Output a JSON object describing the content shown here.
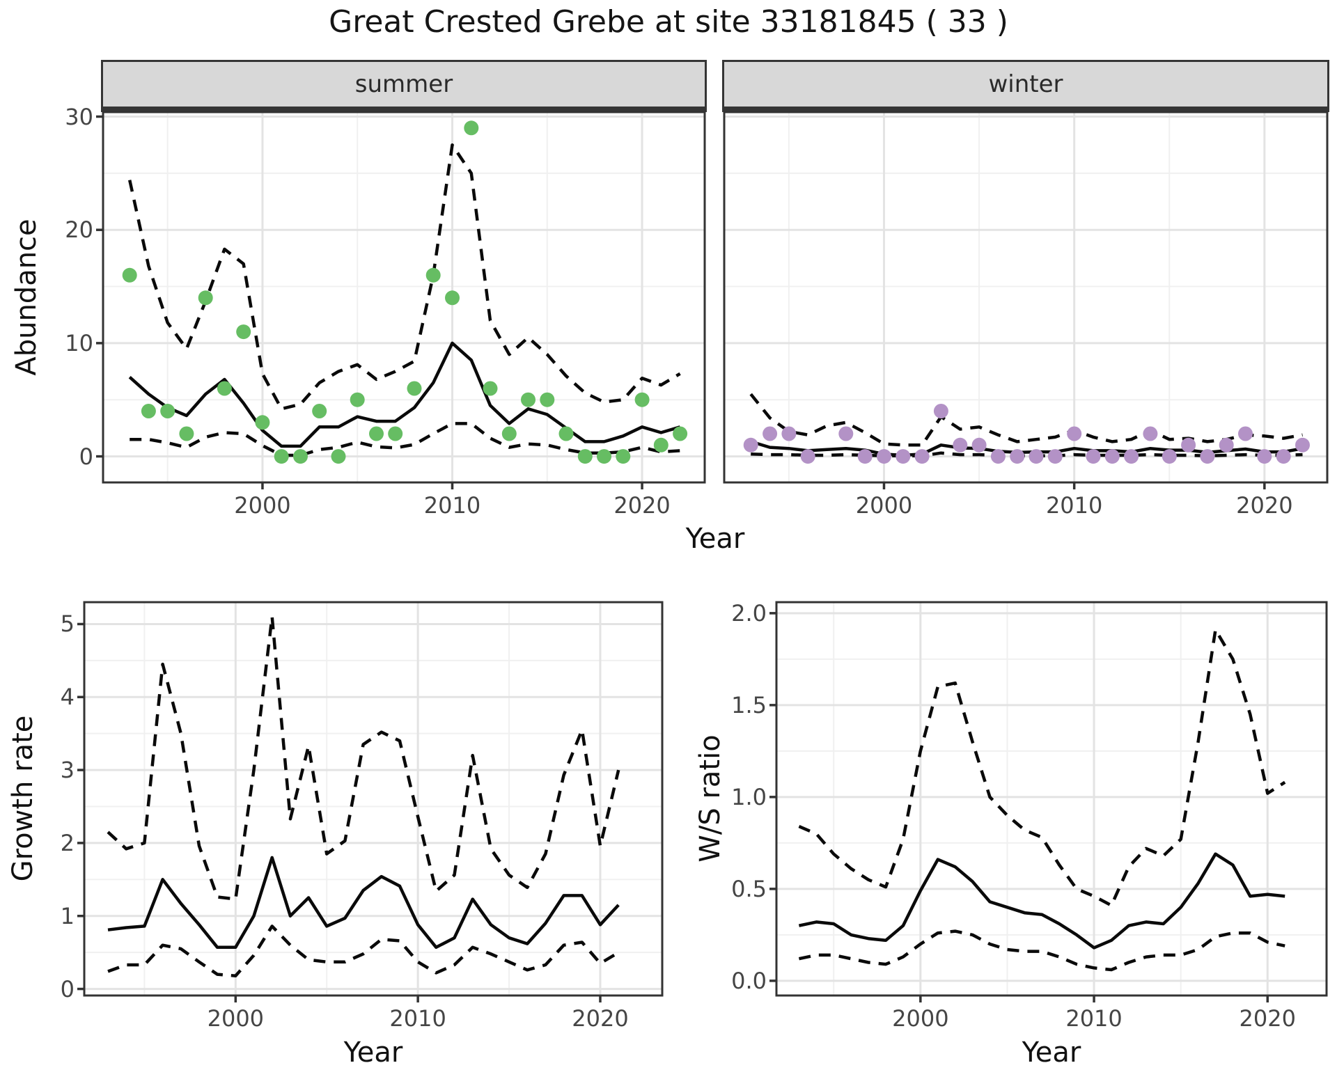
{
  "title": "Great Crested Grebe at site 33181845 ( 33 )",
  "facets": {
    "summer": "summer",
    "winter": "winter"
  },
  "axis_titles": {
    "abundance": "Abundance",
    "year_top": "Year",
    "growth_rate": "Growth rate",
    "ws_ratio": "W/S ratio",
    "year_bottom_left": "Year",
    "year_bottom_right": "Year"
  },
  "colors": {
    "summer_points": "#66bd63",
    "winter_points": "#b392c6",
    "line": "#0a0a0a",
    "strip_bg": "#d8d8d8",
    "strip_border": "#353535",
    "panel_border": "#333333",
    "grid_major": "#e3e3e3",
    "grid_minor": "#f0f0f0",
    "axis_text": "#454545",
    "tick_mark": "#333333"
  },
  "chart_data": [
    {
      "type": "line",
      "name": "abundance-summer",
      "title": "summer",
      "xlabel": "Year",
      "ylabel": "Abundance",
      "xlim": [
        1991.6,
        2023.3
      ],
      "ylim": [
        -2.3,
        30.4
      ],
      "xticks": [
        2000,
        2010,
        2020
      ],
      "xtick_labels": [
        "2000",
        "2010",
        "2020"
      ],
      "yticks": [
        0,
        10,
        20,
        30
      ],
      "ytick_labels": [
        "0",
        "10",
        "20",
        "30"
      ],
      "xminor": [
        1995,
        2005,
        2015
      ],
      "yminor": [
        5,
        15,
        25
      ],
      "x": [
        1993,
        1994,
        1995,
        1996,
        1997,
        1998,
        1999,
        2000,
        2001,
        2002,
        2003,
        2004,
        2005,
        2006,
        2007,
        2008,
        2009,
        2010,
        2011,
        2012,
        2013,
        2014,
        2015,
        2016,
        2017,
        2018,
        2019,
        2020,
        2021,
        2022
      ],
      "series": [
        {
          "name": "upper_ci",
          "style": "dashed",
          "values": [
            24.4,
            16.8,
            11.8,
            9.5,
            13.7,
            18.3,
            17.0,
            7.3,
            4.2,
            4.6,
            6.5,
            7.5,
            8.1,
            6.8,
            7.5,
            8.4,
            16.0,
            27.5,
            25.0,
            12.0,
            9.0,
            10.5,
            9.0,
            7.1,
            5.6,
            4.8,
            5.0,
            6.9,
            6.3,
            7.3
          ]
        },
        {
          "name": "lower_ci",
          "style": "dashed",
          "values": [
            1.5,
            1.5,
            1.2,
            0.8,
            1.7,
            2.1,
            2.0,
            0.95,
            0.1,
            0.1,
            0.6,
            0.8,
            1.25,
            0.85,
            0.75,
            1.05,
            2.0,
            2.9,
            2.9,
            1.6,
            0.8,
            1.1,
            1.0,
            0.6,
            0.3,
            0.3,
            0.4,
            0.8,
            0.4,
            0.5
          ]
        },
        {
          "name": "fit",
          "style": "solid",
          "values": [
            7.0,
            5.5,
            4.3,
            3.6,
            5.5,
            6.8,
            4.7,
            2.3,
            0.9,
            0.9,
            2.6,
            2.6,
            3.5,
            3.1,
            3.1,
            4.3,
            6.5,
            10.0,
            8.5,
            4.5,
            2.9,
            4.2,
            3.7,
            2.5,
            1.3,
            1.3,
            1.8,
            2.6,
            2.1,
            2.6
          ]
        },
        {
          "name": "observed",
          "style": "points",
          "color": "#66bd63",
          "values": [
            16,
            4,
            4,
            2,
            14,
            6,
            11,
            3,
            0,
            0,
            4,
            0,
            5,
            2,
            2,
            6,
            16,
            14,
            29,
            6,
            2,
            5,
            5,
            2,
            0,
            0,
            0,
            5,
            1,
            2
          ]
        }
      ]
    },
    {
      "type": "line",
      "name": "abundance-winter",
      "title": "winter",
      "xlabel": "Year",
      "ylabel": "Abundance",
      "xlim": [
        1991.6,
        2023.3
      ],
      "ylim": [
        -2.3,
        30.4
      ],
      "xticks": [
        2000,
        2010,
        2020
      ],
      "xtick_labels": [
        "2000",
        "2010",
        "2020"
      ],
      "yticks": [
        0,
        10,
        20,
        30
      ],
      "ytick_labels": [
        "0",
        "10",
        "20",
        "30"
      ],
      "xminor": [
        1995,
        2005,
        2015
      ],
      "yminor": [
        5,
        15,
        25
      ],
      "x": [
        1993,
        1994,
        1995,
        1996,
        1997,
        1998,
        1999,
        2000,
        2001,
        2002,
        2003,
        2004,
        2005,
        2006,
        2007,
        2008,
        2009,
        2010,
        2011,
        2012,
        2013,
        2014,
        2015,
        2016,
        2017,
        2018,
        2019,
        2020,
        2021,
        2022
      ],
      "series": [
        {
          "name": "upper_ci",
          "style": "dashed",
          "values": [
            5.5,
            3.4,
            2.2,
            1.9,
            2.7,
            3.0,
            2.1,
            1.1,
            1.0,
            1.0,
            3.5,
            2.4,
            2.6,
            1.9,
            1.3,
            1.5,
            1.7,
            2.3,
            1.7,
            1.3,
            1.5,
            2.3,
            1.5,
            1.6,
            1.3,
            1.5,
            1.9,
            1.8,
            1.6,
            1.9
          ]
        },
        {
          "name": "lower_ci",
          "style": "dashed",
          "values": [
            0.2,
            0.15,
            0.15,
            0.1,
            0.1,
            0.15,
            0.1,
            0.05,
            0.05,
            0.05,
            0.3,
            0.15,
            0.15,
            0.1,
            0.05,
            0.05,
            0.05,
            0.15,
            0.1,
            0.1,
            0.1,
            0.15,
            0.1,
            0.1,
            0.05,
            0.1,
            0.15,
            0.1,
            0.1,
            0.15
          ]
        },
        {
          "name": "fit",
          "style": "solid",
          "values": [
            1.3,
            0.8,
            0.7,
            0.5,
            0.6,
            0.7,
            0.55,
            0.2,
            0.1,
            0.2,
            1.0,
            0.75,
            0.7,
            0.45,
            0.35,
            0.4,
            0.4,
            0.7,
            0.5,
            0.5,
            0.4,
            0.7,
            0.55,
            0.55,
            0.35,
            0.5,
            0.65,
            0.4,
            0.4,
            0.7
          ]
        },
        {
          "name": "observed",
          "style": "points",
          "color": "#b392c6",
          "values": [
            1,
            2,
            2,
            0,
            null,
            2,
            0,
            0,
            0,
            0,
            4,
            1,
            1,
            0,
            0,
            0,
            0,
            2,
            0,
            0,
            0,
            2,
            0,
            1,
            0,
            1,
            2,
            0,
            0,
            1
          ]
        }
      ]
    },
    {
      "type": "line",
      "name": "growth-rate",
      "title": "",
      "xlabel": "Year",
      "ylabel": "Growth rate",
      "xlim": [
        1991.7,
        2023.4
      ],
      "ylim": [
        -0.09,
        5.3
      ],
      "xticks": [
        2000,
        2010,
        2020
      ],
      "xtick_labels": [
        "2000",
        "2010",
        "2020"
      ],
      "yticks": [
        0,
        1,
        2,
        3,
        4,
        5
      ],
      "ytick_labels": [
        "0",
        "1",
        "2",
        "3",
        "4",
        "5"
      ],
      "xminor": [
        1995,
        2005,
        2015
      ],
      "yminor": [
        0.5,
        1.5,
        2.5,
        3.5,
        4.5
      ],
      "x": [
        1993,
        1994,
        1995,
        1996,
        1997,
        1998,
        1999,
        2000,
        2001,
        2002,
        2003,
        2004,
        2005,
        2006,
        2007,
        2008,
        2009,
        2010,
        2011,
        2012,
        2013,
        2014,
        2015,
        2016,
        2017,
        2018,
        2019,
        2020,
        2021
      ],
      "series": [
        {
          "name": "upper_ci",
          "style": "dashed",
          "values": [
            2.15,
            1.92,
            2.0,
            4.45,
            3.5,
            1.96,
            1.26,
            1.23,
            3.0,
            5.1,
            2.33,
            3.33,
            1.85,
            2.03,
            3.35,
            3.52,
            3.4,
            2.36,
            1.34,
            1.56,
            3.2,
            1.92,
            1.56,
            1.39,
            1.85,
            2.93,
            3.55,
            1.96,
            3.0
          ]
        },
        {
          "name": "lower_ci",
          "style": "dashed",
          "values": [
            0.24,
            0.33,
            0.33,
            0.6,
            0.55,
            0.37,
            0.2,
            0.18,
            0.46,
            0.86,
            0.6,
            0.4,
            0.37,
            0.37,
            0.48,
            0.68,
            0.66,
            0.37,
            0.22,
            0.33,
            0.57,
            0.48,
            0.37,
            0.26,
            0.33,
            0.6,
            0.64,
            0.35,
            0.5
          ]
        },
        {
          "name": "fit",
          "style": "solid",
          "values": [
            0.81,
            0.84,
            0.86,
            1.5,
            1.17,
            0.88,
            0.57,
            0.57,
            1.0,
            1.8,
            1.0,
            1.25,
            0.86,
            0.97,
            1.35,
            1.54,
            1.41,
            0.88,
            0.57,
            0.7,
            1.23,
            0.88,
            0.7,
            0.62,
            0.9,
            1.28,
            1.28,
            0.88,
            1.15
          ]
        }
      ]
    },
    {
      "type": "line",
      "name": "ws-ratio",
      "title": "",
      "xlabel": "Year",
      "ylabel": "W/S ratio",
      "xlim": [
        1991.7,
        2023.4
      ],
      "ylim": [
        -0.08,
        2.06
      ],
      "xticks": [
        2000,
        2010,
        2020
      ],
      "xtick_labels": [
        "2000",
        "2010",
        "2020"
      ],
      "yticks": [
        0.0,
        0.5,
        1.0,
        1.5,
        2.0
      ],
      "ytick_labels": [
        "0.0",
        "0.5",
        "1.0",
        "1.5",
        "2.0"
      ],
      "xminor": [
        1995,
        2005,
        2015
      ],
      "yminor": [
        0.25,
        0.75,
        1.25,
        1.75
      ],
      "x": [
        1993,
        1994,
        1995,
        1996,
        1997,
        1998,
        1999,
        2000,
        2001,
        2002,
        2003,
        2004,
        2005,
        2006,
        2007,
        2008,
        2009,
        2010,
        2011,
        2012,
        2013,
        2014,
        2015,
        2016,
        2017,
        2018,
        2019,
        2020,
        2021
      ],
      "series": [
        {
          "name": "upper_ci",
          "style": "dashed",
          "values": [
            0.84,
            0.8,
            0.69,
            0.61,
            0.55,
            0.51,
            0.77,
            1.25,
            1.6,
            1.62,
            1.3,
            1.0,
            0.9,
            0.82,
            0.78,
            0.63,
            0.5,
            0.46,
            0.41,
            0.62,
            0.72,
            0.68,
            0.77,
            1.3,
            1.91,
            1.75,
            1.45,
            1.02,
            1.08
          ]
        },
        {
          "name": "lower_ci",
          "style": "dashed",
          "values": [
            0.12,
            0.14,
            0.14,
            0.12,
            0.1,
            0.09,
            0.13,
            0.2,
            0.26,
            0.27,
            0.25,
            0.2,
            0.17,
            0.16,
            0.16,
            0.13,
            0.09,
            0.07,
            0.06,
            0.1,
            0.13,
            0.14,
            0.14,
            0.17,
            0.24,
            0.26,
            0.26,
            0.21,
            0.19
          ]
        },
        {
          "name": "fit",
          "style": "solid",
          "values": [
            0.3,
            0.32,
            0.31,
            0.25,
            0.23,
            0.22,
            0.3,
            0.49,
            0.66,
            0.62,
            0.54,
            0.43,
            0.4,
            0.37,
            0.36,
            0.31,
            0.25,
            0.18,
            0.22,
            0.3,
            0.32,
            0.31,
            0.4,
            0.53,
            0.69,
            0.63,
            0.46,
            0.47,
            0.46
          ]
        }
      ]
    }
  ]
}
